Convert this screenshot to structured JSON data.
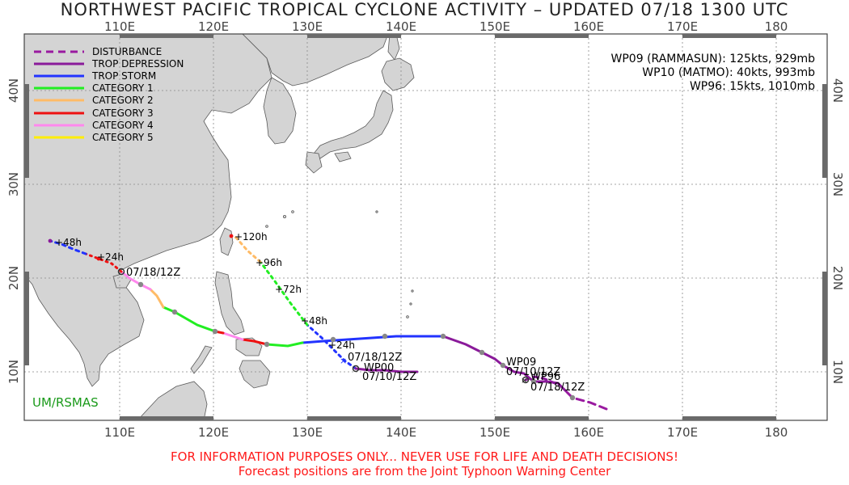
{
  "title": "NORTHWEST PACIFIC TROPICAL CYCLONE ACTIVITY – UPDATED 07/18 1300 UTC",
  "lon_ticks_top": [
    "110E",
    "120E",
    "130E",
    "140E",
    "150E",
    "160E",
    "170E",
    "180"
  ],
  "lon_ticks_bottom": [
    "110E",
    "120E",
    "130E",
    "140E",
    "150E",
    "160E",
    "170E",
    "180"
  ],
  "lat_ticks_left": [
    "40N",
    "30N",
    "20N",
    "10N"
  ],
  "lat_ticks_right": [
    "40N",
    "30N",
    "20N",
    "10N"
  ],
  "legend": [
    {
      "label": "DISTURBANCE",
      "color": "#9a1aa0",
      "dashed": true
    },
    {
      "label": "TROP DEPRESSION",
      "color": "#8a1a9a",
      "dashed": false
    },
    {
      "label": "TROP STORM",
      "color": "#2233ff",
      "dashed": false
    },
    {
      "label": "CATEGORY 1",
      "color": "#22ee22",
      "dashed": false
    },
    {
      "label": "CATEGORY 2",
      "color": "#ffbb66",
      "dashed": false
    },
    {
      "label": "CATEGORY 3",
      "color": "#ee1111",
      "dashed": false
    },
    {
      "label": "CATEGORY 4",
      "color": "#ff88ee",
      "dashed": false
    },
    {
      "label": "CATEGORY 5",
      "color": "#ffee00",
      "dashed": false
    }
  ],
  "storm_info": [
    "WP09 (RAMMASUN): 125kts, 929mb",
    "WP10 (MATMO): 40kts, 993mb",
    "WP96: 15kts, 1010mb"
  ],
  "forecast_labels": [
    "+48h",
    "+24h",
    "+120h",
    "+96h",
    "+72h",
    "+48h",
    "+24h"
  ],
  "position_labels": [
    "07/18/12Z",
    "07/18/12Z",
    "WP00",
    "07/10/12Z",
    "WP09",
    "07/10/12Z",
    "WP96",
    "07/18/12Z"
  ],
  "credit": "UM/RSMAS",
  "disclaimer_1": "FOR INFORMATION PURPOSES ONLY... NEVER USE FOR LIFE AND DEATH DECISIONS!",
  "disclaimer_2": "Forecast positions are from the Joint Typhoon Warning Center",
  "colors": {
    "land": "#d4d4d4",
    "ocean": "#ffffff",
    "coast": "#5a5a5a",
    "grid": "#888888",
    "disclaimer": "#ff1a1a",
    "credit": "#1a9a1a"
  }
}
